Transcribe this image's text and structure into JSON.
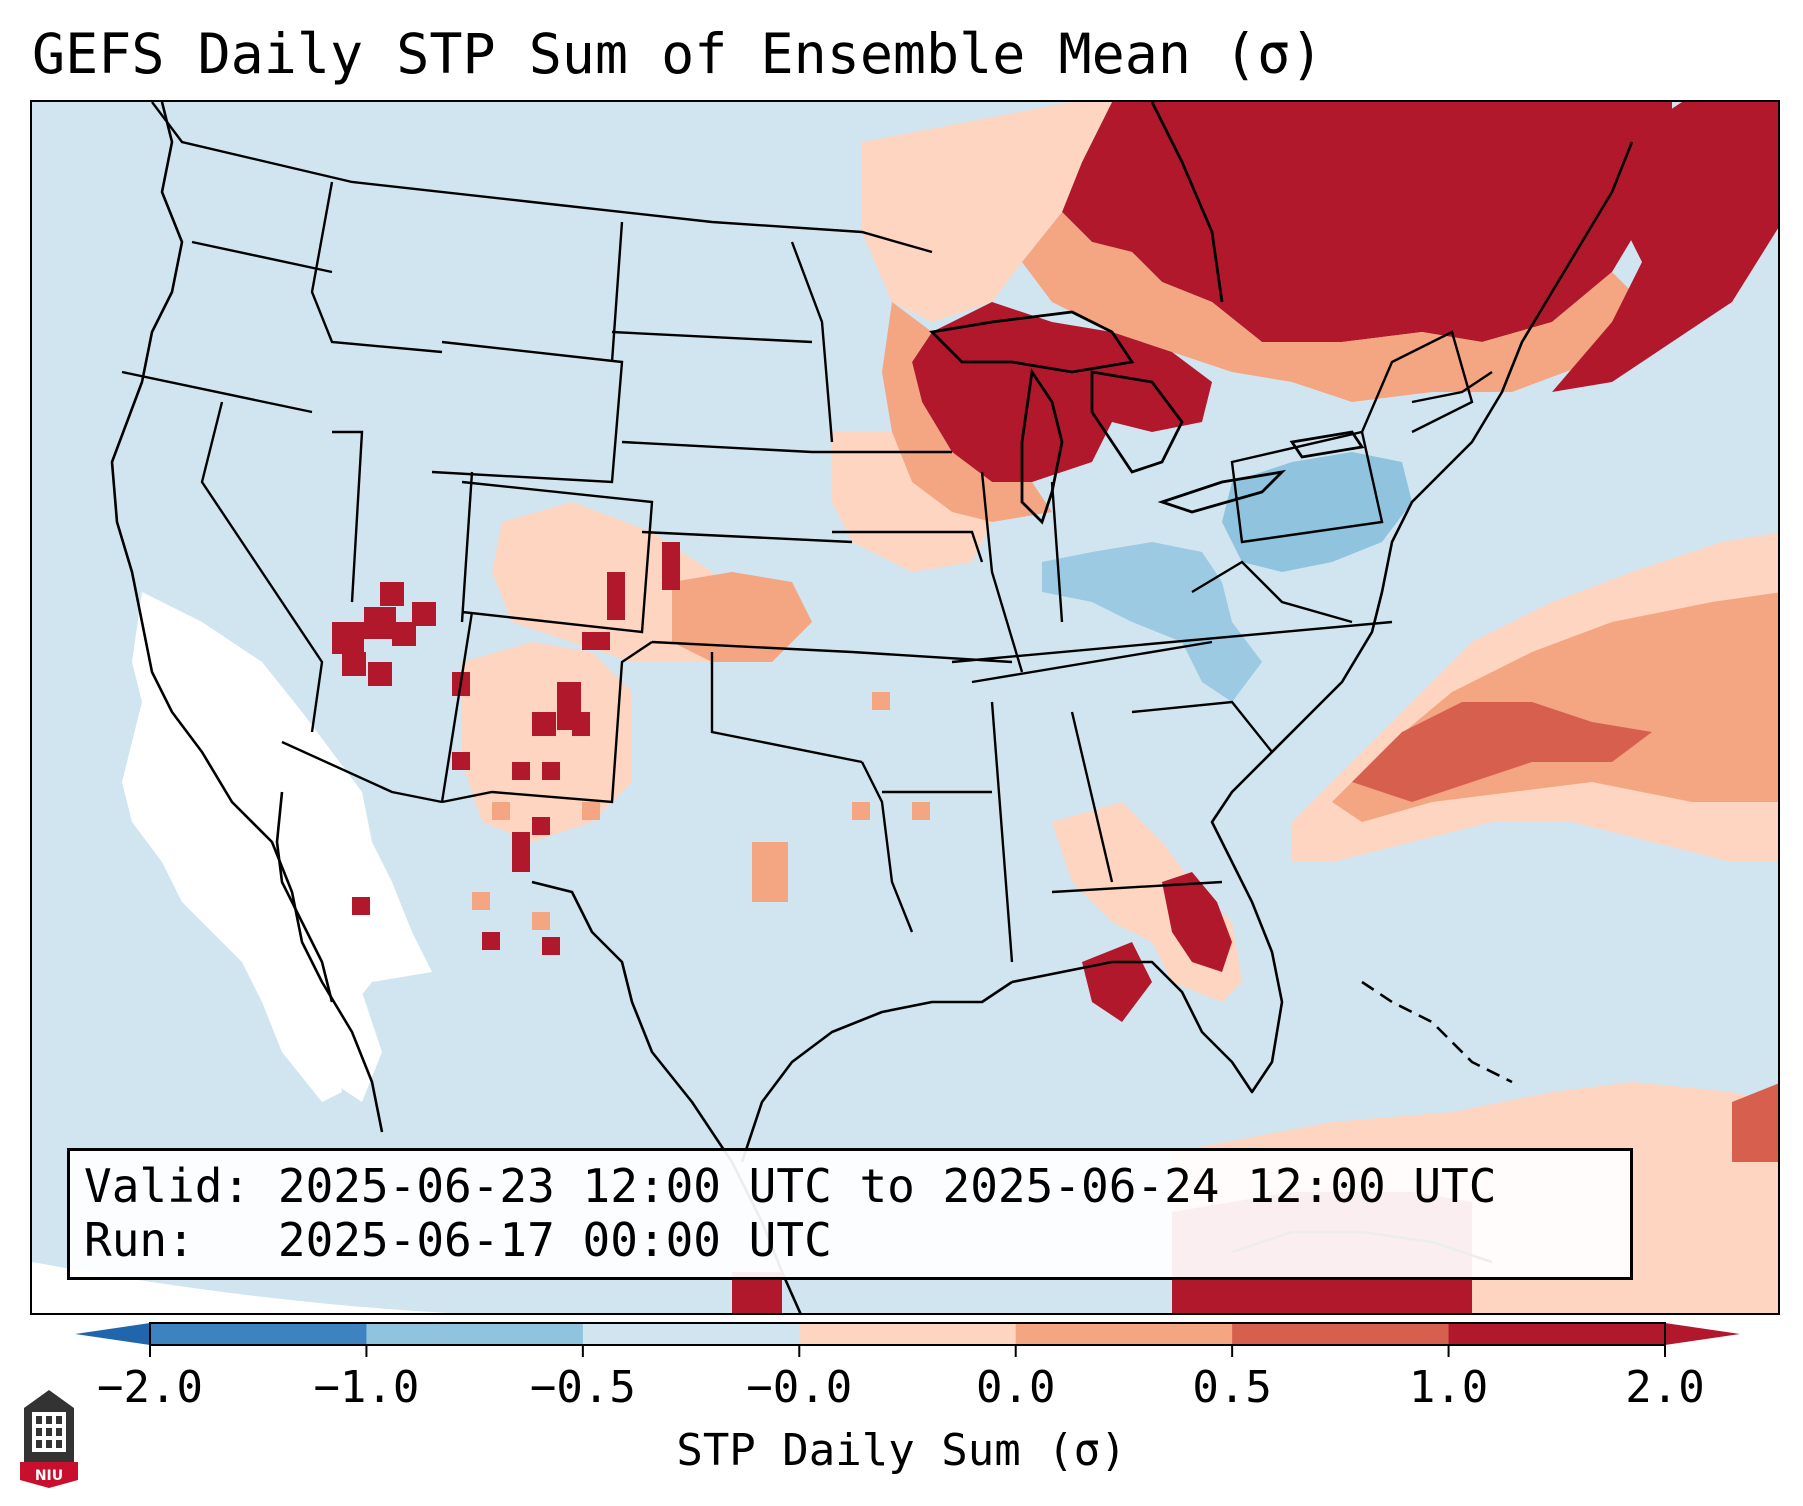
{
  "title": "GEFS Daily STP Sum of Ensemble Mean (σ)",
  "info": {
    "valid_label": "Valid:",
    "valid_range": "2025-06-23 12:00 UTC to 2025-06-24 12:00 UTC",
    "run_label": "Run:",
    "run_time": "2025-06-17 00:00 UTC"
  },
  "colorbar": {
    "label": "STP Daily Sum (σ)",
    "ticks": [
      "−2.0",
      "−1.0",
      "−0.5",
      "−0.0",
      "0.0",
      "0.5",
      "1.0",
      "2.0"
    ],
    "colors": [
      "#3c83c0",
      "#8fc3de",
      "#d1e5f0",
      "#ffffff",
      "#fdd5c0",
      "#f4a582",
      "#d6604d",
      "#b2182b"
    ],
    "extend_min_color": "#2166ac",
    "extend_max_color": "#b2182b"
  },
  "map": {
    "background_color": "#d1e5f0",
    "region": "Continental United States, southern Canada, northern Mexico",
    "anomaly_areas": [
      {
        "area": "Ontario and Quebec",
        "category": "2.0"
      },
      {
        "area": "Upper Great Lakes (Wisconsin, Michigan)",
        "category": "2.0"
      },
      {
        "area": "Western Atlantic off the Carolinas",
        "category": "1.0"
      },
      {
        "area": "Arizona and New Mexico",
        "category": "2.0"
      },
      {
        "area": "Florida peninsula",
        "category": "2.0"
      },
      {
        "area": "Pennsylvania and Mid-Atlantic",
        "category": "-0.5"
      },
      {
        "area": "California and eastern Pacific",
        "category": "-0.0"
      }
    ]
  },
  "logo": {
    "text": "NIU",
    "icon": "university-tower-icon"
  }
}
